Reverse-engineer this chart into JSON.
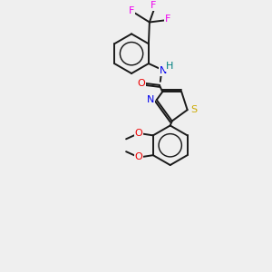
{
  "background_color": "#efefef",
  "bond_color": "#1a1a1a",
  "atom_colors": {
    "N": "#0000ee",
    "O": "#ee0000",
    "S": "#ccaa00",
    "F": "#ee00ee",
    "H": "#008080",
    "C": "#1a1a1a"
  },
  "figsize": [
    3.0,
    3.0
  ],
  "dpi": 100,
  "lw": 1.4,
  "fs": 8.0
}
